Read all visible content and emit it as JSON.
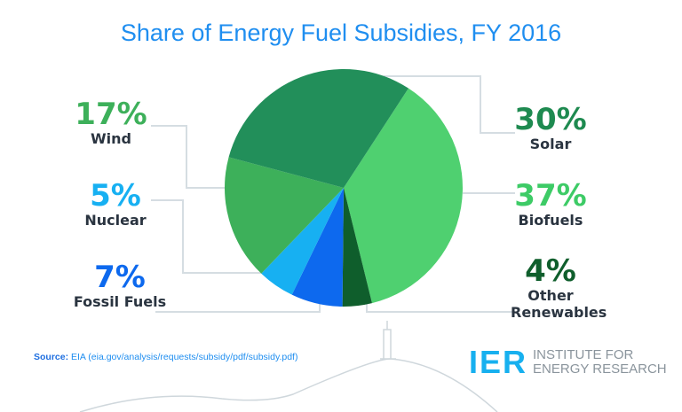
{
  "chart_data": {
    "type": "pie",
    "title": "Share of Energy Fuel Subsidies, FY 2016",
    "slices": [
      {
        "label": "Biofuels",
        "value": 37,
        "pct_label": "37%",
        "color": "#4fd070",
        "text_color": "#3dcb66"
      },
      {
        "label": "Other Renewables",
        "value": 4,
        "pct_label": "4%",
        "color": "#0f5e2c",
        "text_color": "#0f5e2c"
      },
      {
        "label": "Fossil Fuels",
        "value": 7,
        "pct_label": "7%",
        "color": "#0d69ee",
        "text_color": "#0d69ee"
      },
      {
        "label": "Nuclear",
        "value": 5,
        "pct_label": "5%",
        "color": "#17b0f2",
        "text_color": "#17b0f2"
      },
      {
        "label": "Wind",
        "value": 17,
        "pct_label": "17%",
        "color": "#3db05a",
        "text_color": "#3db05a"
      },
      {
        "label": "Solar",
        "value": 30,
        "pct_label": "30%",
        "color": "#228f5a",
        "text_color": "#1e8a50"
      }
    ]
  },
  "source": {
    "label": "Source:",
    "text": "EIA (eia.gov/analysis/requests/subsidy/pdf/subsidy.pdf)"
  },
  "logo": {
    "abbr": "IER",
    "line1": "INSTITUTE FOR",
    "line2": "ENERGY RESEARCH"
  }
}
